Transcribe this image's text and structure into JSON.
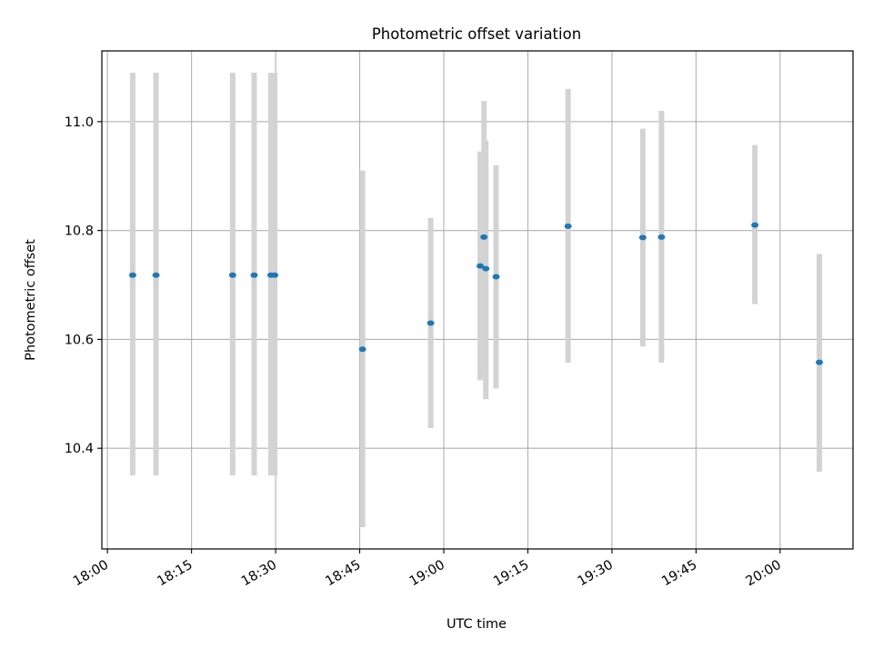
{
  "chart_data": {
    "type": "scatter",
    "title": "Photometric offset variation",
    "xlabel": "UTC time",
    "ylabel": "Photometric offset",
    "x_type": "time",
    "xlim": [
      "17:59",
      "20:13"
    ],
    "ylim": [
      10.215,
      11.13
    ],
    "xticks": [
      "18:00",
      "18:15",
      "18:30",
      "18:45",
      "19:00",
      "19:15",
      "19:30",
      "19:45",
      "20:00"
    ],
    "yticks": [
      10.4,
      10.6,
      10.8,
      11.0
    ],
    "ytick_labels": [
      "10.4",
      "10.6",
      "10.8",
      "11.0"
    ],
    "grid": true,
    "marker_color": "#1f77b4",
    "errorbar_color": "#d3d3d3",
    "points": [
      {
        "time": "18:04:30",
        "y": 10.718,
        "low": 10.35,
        "high": 11.09
      },
      {
        "time": "18:08:40",
        "y": 10.718,
        "low": 10.35,
        "high": 11.09
      },
      {
        "time": "18:22:20",
        "y": 10.718,
        "low": 10.35,
        "high": 11.09
      },
      {
        "time": "18:26:10",
        "y": 10.718,
        "low": 10.35,
        "high": 11.09
      },
      {
        "time": "18:29:10",
        "y": 10.718,
        "low": 10.35,
        "high": 11.09
      },
      {
        "time": "18:29:50",
        "y": 10.718,
        "low": 10.35,
        "high": 11.09
      },
      {
        "time": "18:45:30",
        "y": 10.582,
        "low": 10.255,
        "high": 10.91
      },
      {
        "time": "18:57:40",
        "y": 10.63,
        "low": 10.437,
        "high": 10.823
      },
      {
        "time": "19:06:30",
        "y": 10.735,
        "low": 10.525,
        "high": 10.945
      },
      {
        "time": "19:07:10",
        "y": 10.788,
        "low": 10.538,
        "high": 11.038
      },
      {
        "time": "19:07:30",
        "y": 10.73,
        "low": 10.49,
        "high": 10.965
      },
      {
        "time": "19:09:20",
        "y": 10.715,
        "low": 10.51,
        "high": 10.92
      },
      {
        "time": "19:22:10",
        "y": 10.808,
        "low": 10.557,
        "high": 11.06
      },
      {
        "time": "19:35:30",
        "y": 10.787,
        "low": 10.587,
        "high": 10.987
      },
      {
        "time": "19:38:50",
        "y": 10.788,
        "low": 10.557,
        "high": 11.02
      },
      {
        "time": "19:55:30",
        "y": 10.81,
        "low": 10.665,
        "high": 10.957
      },
      {
        "time": "20:07:00",
        "y": 10.558,
        "low": 10.357,
        "high": 10.757
      }
    ]
  }
}
